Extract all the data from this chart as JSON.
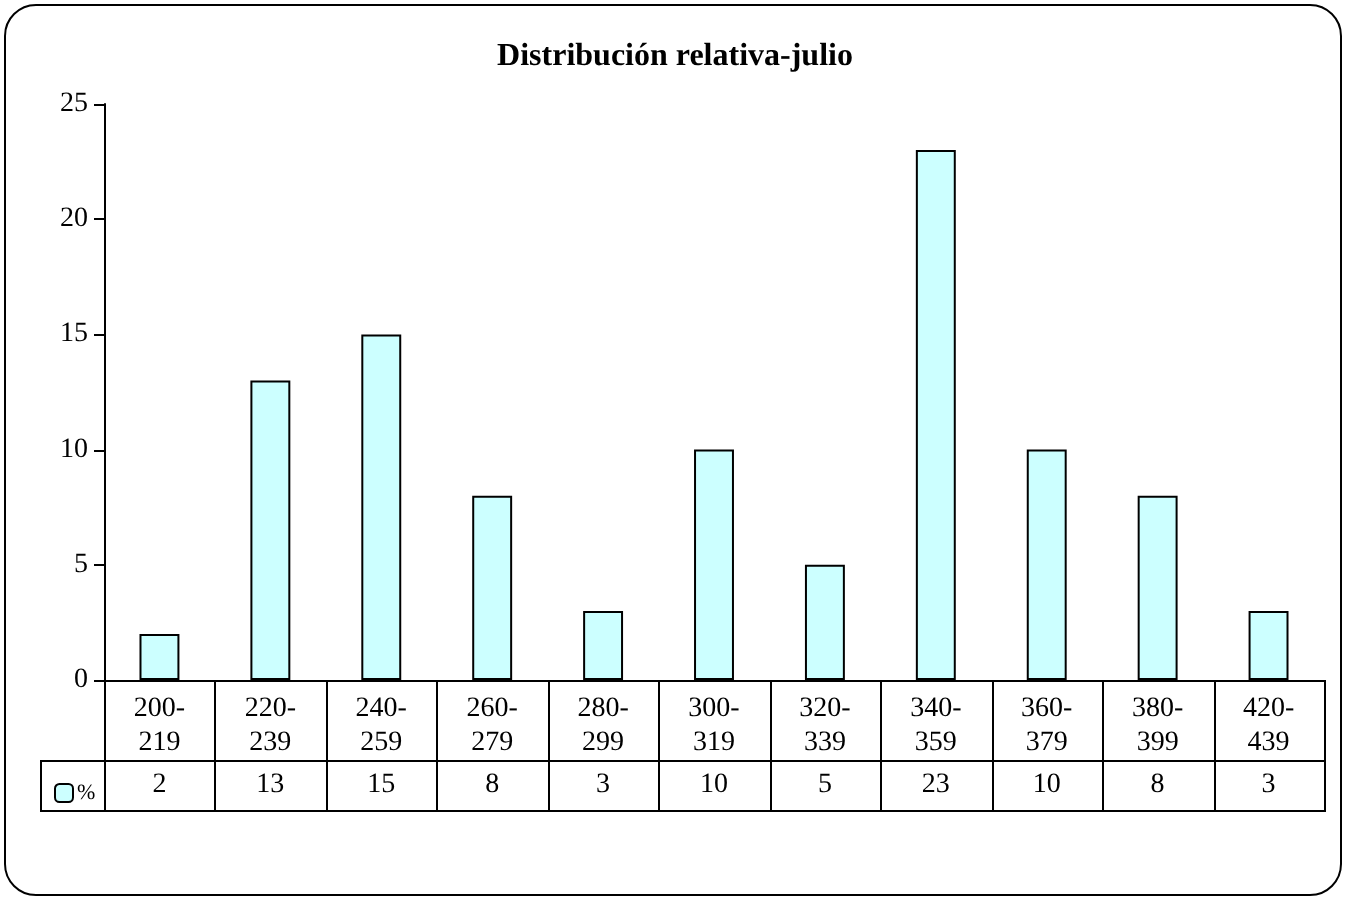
{
  "chart_data": {
    "type": "bar",
    "title": "Distribución relativa-julio",
    "categories": [
      "200-219",
      "220-239",
      "240-259",
      "260-279",
      "280-299",
      "300-319",
      "320-339",
      "340-359",
      "360-379",
      "380-399",
      "420-439"
    ],
    "series": [
      {
        "name": "%",
        "color": "#ccffff",
        "values": [
          2,
          13,
          15,
          8,
          3,
          10,
          5,
          23,
          10,
          8,
          3
        ]
      }
    ],
    "ylim": [
      0,
      25
    ],
    "yticks": [
      0,
      5,
      10,
      15,
      20,
      25
    ],
    "grid": false,
    "legend": "bottom left",
    "data_labels": true
  }
}
